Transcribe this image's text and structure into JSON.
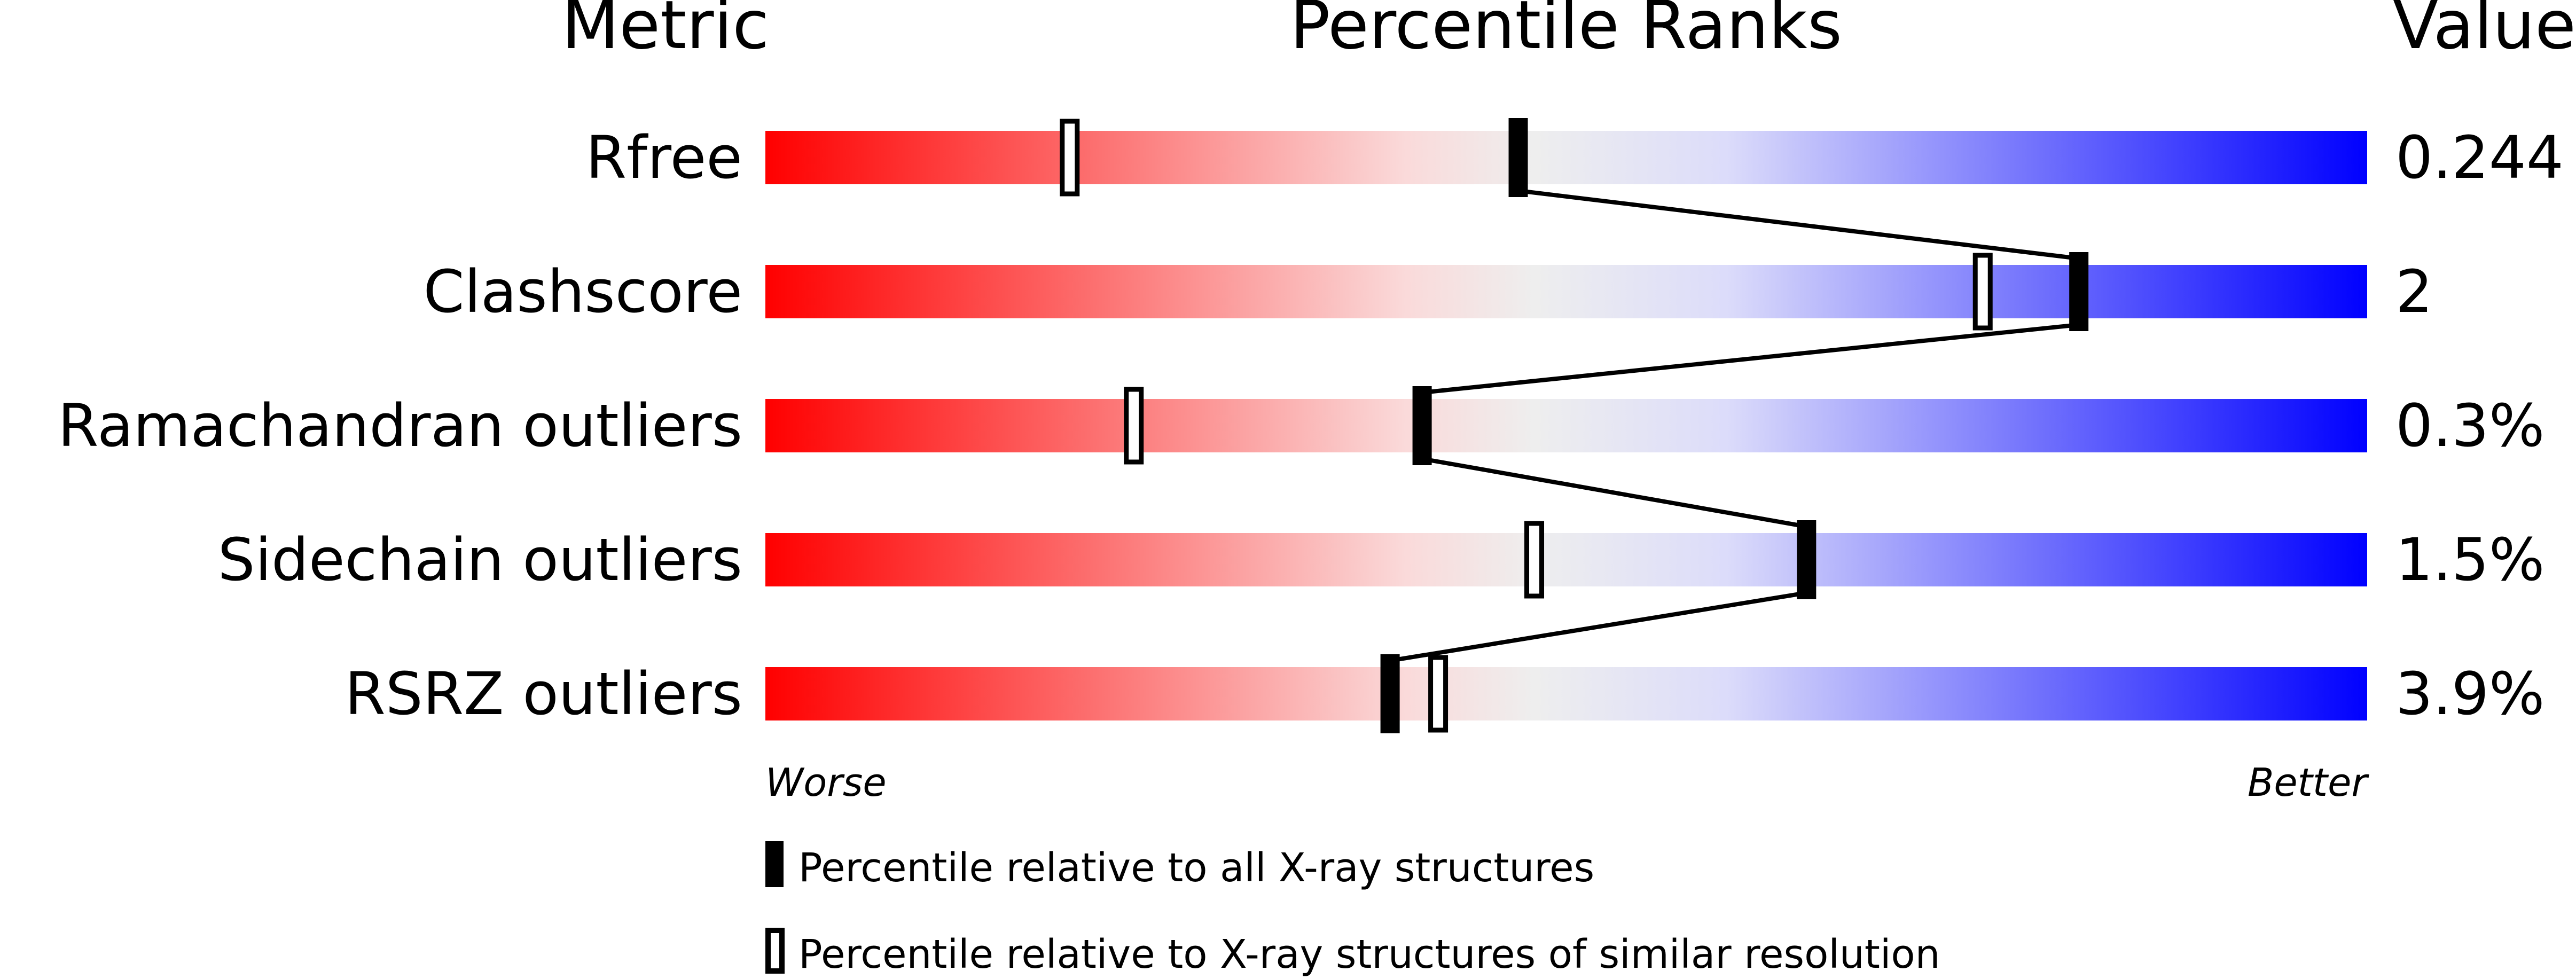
{
  "chart_data": {
    "type": "percentile-slider",
    "headers": {
      "metric": "Metric",
      "ranks": "Percentile Ranks",
      "value": "Value"
    },
    "xlim": [
      0,
      100
    ],
    "axis_labels": {
      "left": "Worse",
      "right": "Better"
    },
    "gradient_colors": [
      "#ff0000",
      "#fadada",
      "#eeeeee",
      "#dcdcfa",
      "#0000ff"
    ],
    "rows": [
      {
        "metric": "Rfree",
        "value": "0.244",
        "percentile_all": 47,
        "percentile_similar": 19
      },
      {
        "metric": "Clashscore",
        "value": "2",
        "percentile_all": 82,
        "percentile_similar": 76
      },
      {
        "metric": "Ramachandran outliers",
        "value": "0.3%",
        "percentile_all": 41,
        "percentile_similar": 23
      },
      {
        "metric": "Sidechain outliers",
        "value": "1.5%",
        "percentile_all": 65,
        "percentile_similar": 48
      },
      {
        "metric": "RSRZ outliers",
        "value": "3.9%",
        "percentile_all": 39,
        "percentile_similar": 42
      }
    ],
    "legend": [
      {
        "marker": "filled",
        "label": "Percentile relative to all X-ray structures"
      },
      {
        "marker": "open",
        "label": "Percentile relative to X-ray structures of similar resolution"
      }
    ]
  }
}
